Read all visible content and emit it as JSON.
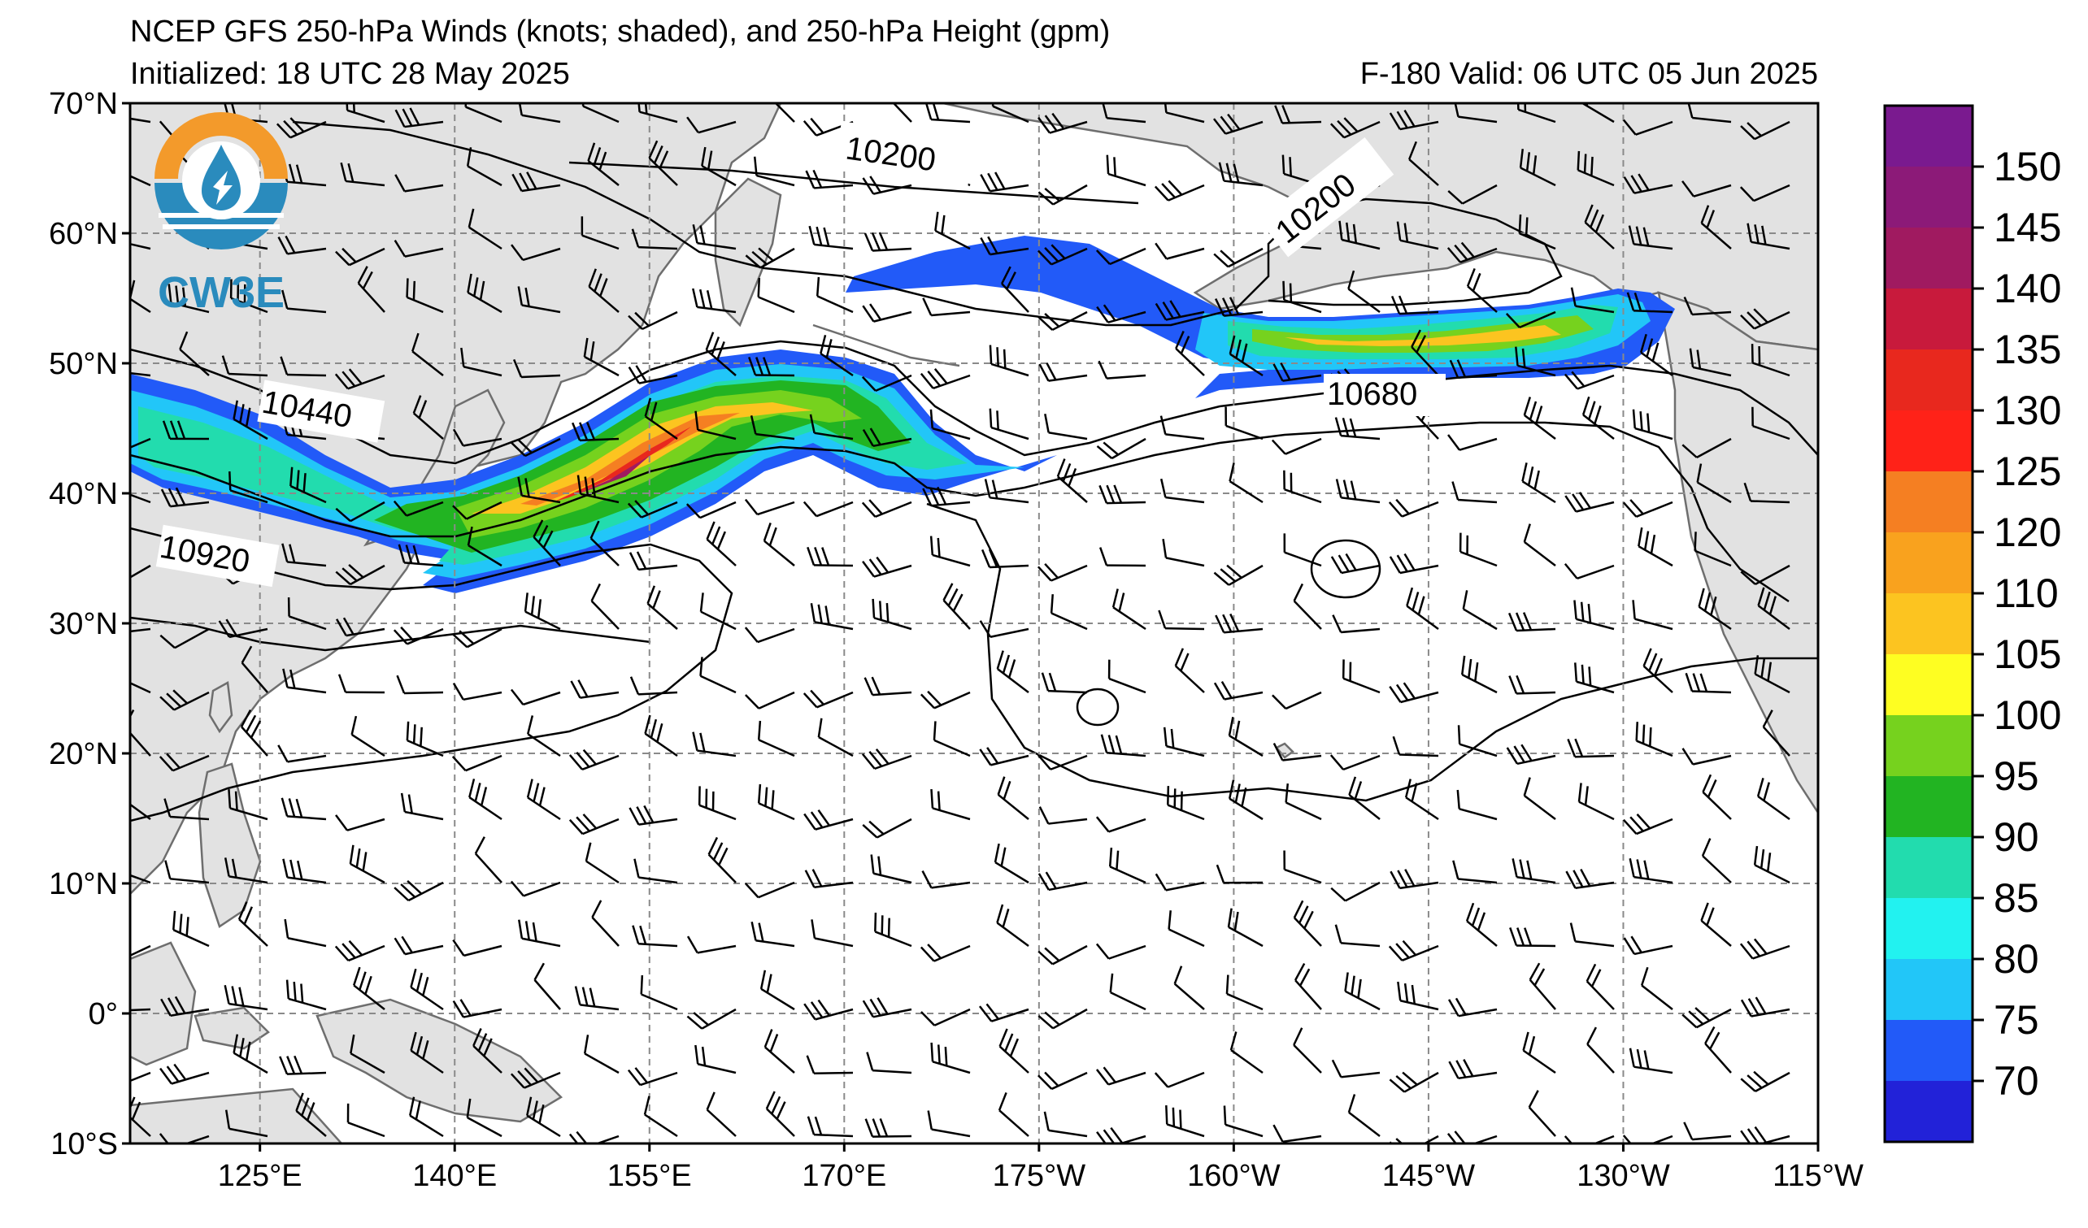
{
  "header": {
    "title": "NCEP GFS 250-hPa Winds (knots; shaded), and 250-hPa Height (gpm)",
    "initialized": "Initialized: 18 UTC 28 May 2025",
    "valid": "F-180  Valid: 06 UTC 05 Jun 2025"
  },
  "logo": {
    "text": "CW3E",
    "colors": {
      "orange": "#f39a2b",
      "blue": "#2a8bbd"
    }
  },
  "axes": {
    "lat_labels": [
      "70°N",
      "60°N",
      "50°N",
      "40°N",
      "30°N",
      "20°N",
      "10°N",
      "0°",
      "10°S"
    ],
    "lon_labels": [
      "125°E",
      "140°E",
      "155°E",
      "170°E",
      "175°W",
      "160°W",
      "145°W",
      "130°W",
      "115°W"
    ],
    "lat_range": [
      -10,
      70
    ],
    "lon_range": [
      115,
      245
    ],
    "grid": "dashed"
  },
  "contours": {
    "labels": [
      "10200",
      "10200",
      "10440",
      "10680",
      "10920"
    ]
  },
  "colorbar": {
    "ticks": [
      "150",
      "145",
      "140",
      "135",
      "130",
      "125",
      "120",
      "110",
      "105",
      "100",
      "95",
      "90",
      "85",
      "80",
      "75",
      "70"
    ],
    "colors": [
      "#7a1a8f",
      "#8c1a78",
      "#a01a60",
      "#c81a3c",
      "#e8281e",
      "#ff2218",
      "#f57f22",
      "#f9a21e",
      "#fcc420",
      "#fefe22",
      "#76d21e",
      "#22b422",
      "#22dcae",
      "#22f2f0",
      "#22c6f8",
      "#225af8",
      "#2222d8"
    ]
  },
  "colors": {
    "land": "#e2e2e2",
    "coast": "#6e6e6e",
    "contour": "#000000",
    "grid": "#8a8a8a"
  }
}
